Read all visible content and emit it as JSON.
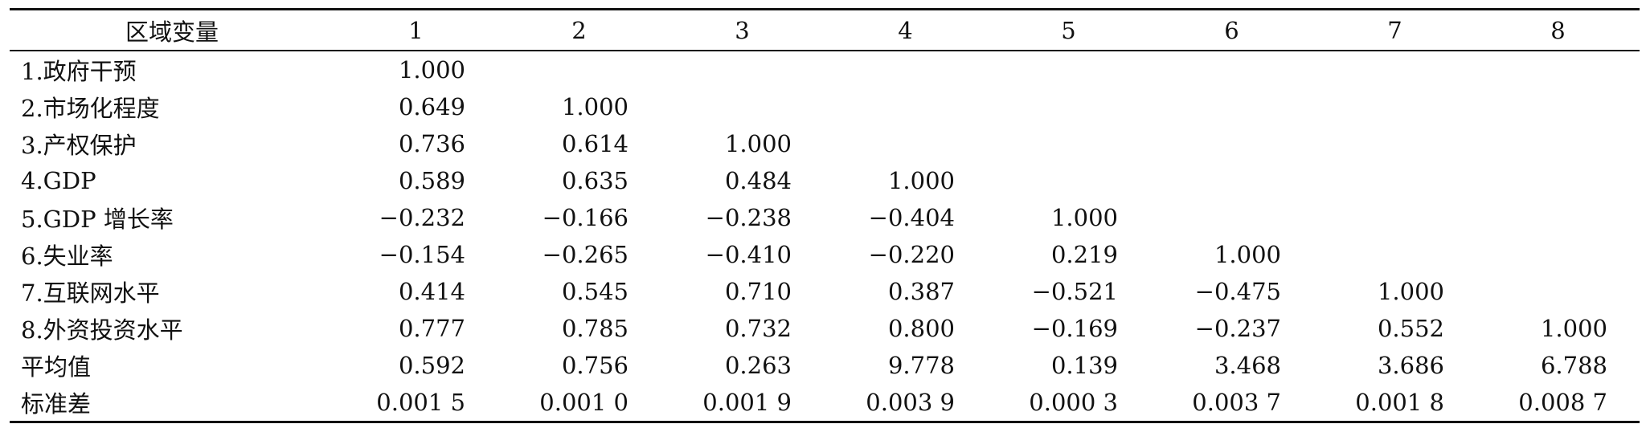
{
  "table": {
    "headers": [
      "区域变量",
      "1",
      "2",
      "3",
      "4",
      "5",
      "6",
      "7",
      "8"
    ],
    "rows": [
      {
        "label": "1.政府干预",
        "values": [
          "1.000",
          "",
          "",
          "",
          "",
          "",
          "",
          ""
        ]
      },
      {
        "label": "2.市场化程度",
        "values": [
          "0.649",
          "1.000",
          "",
          "",
          "",
          "",
          "",
          ""
        ]
      },
      {
        "label": "3.产权保护",
        "values": [
          "0.736",
          "0.614",
          "1.000",
          "",
          "",
          "",
          "",
          ""
        ]
      },
      {
        "label": "4.GDP",
        "values": [
          "0.589",
          "0.635",
          "0.484",
          "1.000",
          "",
          "",
          "",
          ""
        ]
      },
      {
        "label": "5.GDP 增长率",
        "values": [
          "−0.232",
          "−0.166",
          "−0.238",
          "−0.404",
          "1.000",
          "",
          "",
          ""
        ]
      },
      {
        "label": "6.失业率",
        "values": [
          "−0.154",
          "−0.265",
          "−0.410",
          "−0.220",
          "0.219",
          "1.000",
          "",
          ""
        ]
      },
      {
        "label": "7.互联网水平",
        "values": [
          "0.414",
          "0.545",
          "0.710",
          "0.387",
          "−0.521",
          "−0.475",
          "1.000",
          ""
        ]
      },
      {
        "label": "8.外资投资水平",
        "values": [
          "0.777",
          "0.785",
          "0.732",
          "0.800",
          "−0.169",
          "−0.237",
          "0.552",
          "1.000"
        ]
      },
      {
        "label": "平均值",
        "values": [
          "0.592",
          "0.756",
          "0.263",
          "9.778",
          "0.139",
          "3.468",
          "3.686",
          "6.788"
        ]
      },
      {
        "label": "标准差",
        "values": [
          "0.001 5",
          "0.001 0",
          "0.001 9",
          "0.003 9",
          "0.000 3",
          "0.003 7",
          "0.001 8",
          "0.008 7"
        ]
      }
    ]
  }
}
